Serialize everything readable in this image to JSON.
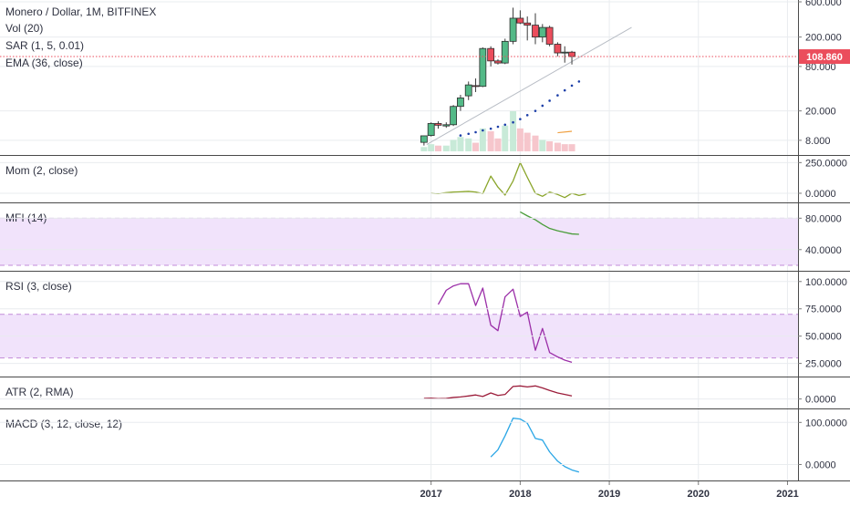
{
  "colors": {
    "up": "#53b987",
    "down": "#eb4d5c",
    "grid": "#e9ecef",
    "separator": "#4a4a4a",
    "band_fill": "#f1e3fb",
    "band_line": "#c28bd9",
    "price_line": "#eb4d5c",
    "sar": "#1c3fa8",
    "trend": "#b7bcc4",
    "vol_up": "#c8ead8",
    "vol_down": "#f6c6cc",
    "vol_ma": "#f0a040",
    "mom": "#8aa52a",
    "mfi": "#4a9d3a",
    "rsi": "#9b2fa8",
    "atr": "#9b1c3a",
    "macd": "#2aa6e6",
    "text": "#2f3241"
  },
  "labels": {
    "main_title": "Monero / Dollar, 1M, BITFINEX",
    "vol": "Vol (20)",
    "sar": "SAR (1, 5, 0.01)",
    "ema": "EMA (36, close)",
    "mom": "Mom (2, close)",
    "mfi": "MFI (14)",
    "rsi": "RSI (3, close)",
    "atr": "ATR (2, RMA)",
    "macd": "MACD (3, 12, close, 12)",
    "last_price": "108.860"
  },
  "chart_data": [
    {
      "type": "candlestick",
      "name": "Monero / Dollar, 1M, BITFINEX",
      "scale": "log",
      "ylim": [
        6,
        600
      ],
      "y_ticks": [
        "600.000",
        "200.000",
        "80.000",
        "20.000",
        "8.000"
      ],
      "x_ticks": [
        "2017",
        "2018",
        "2019",
        "2020",
        "2021"
      ],
      "last_price": 108.86,
      "candles": [
        {
          "t": 2016.92,
          "o": 7.5,
          "h": 9.0,
          "l": 6.8,
          "c": 9.2
        },
        {
          "t": 2017.0,
          "o": 9.3,
          "h": 14.0,
          "l": 9.0,
          "c": 13.5
        },
        {
          "t": 2017.08,
          "o": 13.5,
          "h": 14.5,
          "l": 11.5,
          "c": 12.8
        },
        {
          "t": 2017.17,
          "o": 12.5,
          "h": 14.0,
          "l": 11.8,
          "c": 13.0
        },
        {
          "t": 2017.25,
          "o": 13.0,
          "h": 24.0,
          "l": 12.5,
          "c": 23.0
        },
        {
          "t": 2017.33,
          "o": 23.0,
          "h": 33.0,
          "l": 20.0,
          "c": 30.0
        },
        {
          "t": 2017.42,
          "o": 32.0,
          "h": 50.0,
          "l": 28.0,
          "c": 45.0
        },
        {
          "t": 2017.5,
          "o": 44.0,
          "h": 55.0,
          "l": 36.0,
          "c": 43.0
        },
        {
          "t": 2017.58,
          "o": 43.0,
          "h": 145.0,
          "l": 42.0,
          "c": 140.0
        },
        {
          "t": 2017.67,
          "o": 140.0,
          "h": 150.0,
          "l": 80.0,
          "c": 95.0
        },
        {
          "t": 2017.75,
          "o": 95.0,
          "h": 100.0,
          "l": 85.0,
          "c": 89.0
        },
        {
          "t": 2017.83,
          "o": 89.0,
          "h": 190.0,
          "l": 86.0,
          "c": 175.0
        },
        {
          "t": 2017.92,
          "o": 175.0,
          "h": 500.0,
          "l": 160.0,
          "c": 360.0
        },
        {
          "t": 2018.0,
          "o": 360.0,
          "h": 460.0,
          "l": 300.0,
          "c": 310.0
        },
        {
          "t": 2018.08,
          "o": 310.0,
          "h": 380.0,
          "l": 180.0,
          "c": 290.0
        },
        {
          "t": 2018.17,
          "o": 290.0,
          "h": 420.0,
          "l": 160.0,
          "c": 200.0
        },
        {
          "t": 2018.25,
          "o": 200.0,
          "h": 300.0,
          "l": 170.0,
          "c": 270.0
        },
        {
          "t": 2018.33,
          "o": 270.0,
          "h": 285.0,
          "l": 150.0,
          "c": 160.0
        },
        {
          "t": 2018.42,
          "o": 160.0,
          "h": 170.0,
          "l": 110.0,
          "c": 122.0
        },
        {
          "t": 2018.5,
          "o": 122.0,
          "h": 150.0,
          "l": 90.0,
          "c": 125.0
        },
        {
          "t": 2018.58,
          "o": 125.0,
          "h": 130.0,
          "l": 85.0,
          "c": 108.86
        }
      ],
      "sar": [
        {
          "t": 2017.33,
          "v": 9.3
        },
        {
          "t": 2017.42,
          "v": 9.8
        },
        {
          "t": 2017.5,
          "v": 10.3
        },
        {
          "t": 2017.58,
          "v": 10.9
        },
        {
          "t": 2017.67,
          "v": 11.5
        },
        {
          "t": 2017.75,
          "v": 12.2
        },
        {
          "t": 2017.83,
          "v": 13.0
        },
        {
          "t": 2017.92,
          "v": 14.0
        },
        {
          "t": 2018.0,
          "v": 15.5
        },
        {
          "t": 2018.08,
          "v": 17.5
        },
        {
          "t": 2018.17,
          "v": 20.0
        },
        {
          "t": 2018.25,
          "v": 23.5
        },
        {
          "t": 2018.33,
          "v": 27.5
        },
        {
          "t": 2018.42,
          "v": 32.5
        },
        {
          "t": 2018.5,
          "v": 38.0
        },
        {
          "t": 2018.58,
          "v": 44.0
        },
        {
          "t": 2018.66,
          "v": 50.0
        }
      ],
      "trendline": [
        {
          "t": 2016.95,
          "v": 7.0
        },
        {
          "t": 2019.25,
          "v": 270.0
        }
      ],
      "volume": [
        {
          "t": 2016.92,
          "v": 3,
          "dir": "up"
        },
        {
          "t": 2017.0,
          "v": 5,
          "dir": "up"
        },
        {
          "t": 2017.08,
          "v": 4,
          "dir": "down"
        },
        {
          "t": 2017.17,
          "v": 4,
          "dir": "up"
        },
        {
          "t": 2017.25,
          "v": 8,
          "dir": "up"
        },
        {
          "t": 2017.33,
          "v": 10,
          "dir": "up"
        },
        {
          "t": 2017.42,
          "v": 9,
          "dir": "up"
        },
        {
          "t": 2017.5,
          "v": 6,
          "dir": "down"
        },
        {
          "t": 2017.58,
          "v": 16,
          "dir": "up"
        },
        {
          "t": 2017.67,
          "v": 14,
          "dir": "down"
        },
        {
          "t": 2017.75,
          "v": 9,
          "dir": "down"
        },
        {
          "t": 2017.83,
          "v": 18,
          "dir": "up"
        },
        {
          "t": 2017.92,
          "v": 28,
          "dir": "up"
        },
        {
          "t": 2018.0,
          "v": 16,
          "dir": "down"
        },
        {
          "t": 2018.08,
          "v": 13,
          "dir": "down"
        },
        {
          "t": 2018.17,
          "v": 11,
          "dir": "down"
        },
        {
          "t": 2018.25,
          "v": 8,
          "dir": "up"
        },
        {
          "t": 2018.33,
          "v": 7,
          "dir": "down"
        },
        {
          "t": 2018.42,
          "v": 6,
          "dir": "down"
        },
        {
          "t": 2018.5,
          "v": 5,
          "dir": "down"
        },
        {
          "t": 2018.58,
          "v": 5,
          "dir": "down"
        }
      ],
      "volume_ma": [
        {
          "t": 2018.42,
          "v": 13
        },
        {
          "t": 2018.58,
          "v": 14
        }
      ]
    },
    {
      "type": "line",
      "name": "Mom (2, close)",
      "ylim": [
        -30,
        260
      ],
      "y_ticks": [
        "250.0000",
        "0.0000"
      ],
      "points": [
        {
          "t": 2017.0,
          "v": 1
        },
        {
          "t": 2017.08,
          "v": -3
        },
        {
          "t": 2017.17,
          "v": 5
        },
        {
          "t": 2017.25,
          "v": 10
        },
        {
          "t": 2017.33,
          "v": 12
        },
        {
          "t": 2017.42,
          "v": 15
        },
        {
          "t": 2017.5,
          "v": 10
        },
        {
          "t": 2017.58,
          "v": -3
        },
        {
          "t": 2017.67,
          "v": 140
        },
        {
          "t": 2017.75,
          "v": 50
        },
        {
          "t": 2017.83,
          "v": -15
        },
        {
          "t": 2017.92,
          "v": 100
        },
        {
          "t": 2018.0,
          "v": 250
        },
        {
          "t": 2018.08,
          "v": 130
        },
        {
          "t": 2018.17,
          "v": 0
        },
        {
          "t": 2018.25,
          "v": -25
        },
        {
          "t": 2018.33,
          "v": 10
        },
        {
          "t": 2018.42,
          "v": -10
        },
        {
          "t": 2018.5,
          "v": -35
        },
        {
          "t": 2018.58,
          "v": 0
        },
        {
          "t": 2018.66,
          "v": -18
        },
        {
          "t": 2018.74,
          "v": -5
        }
      ]
    },
    {
      "type": "line",
      "name": "MFI (14)",
      "ylim": [
        20,
        92
      ],
      "y_ticks": [
        "80.0000",
        "40.0000"
      ],
      "band": [
        20,
        80
      ],
      "points": [
        {
          "t": 2018.0,
          "v": 88
        },
        {
          "t": 2018.08,
          "v": 83
        },
        {
          "t": 2018.17,
          "v": 78
        },
        {
          "t": 2018.25,
          "v": 72
        },
        {
          "t": 2018.33,
          "v": 67
        },
        {
          "t": 2018.42,
          "v": 64
        },
        {
          "t": 2018.5,
          "v": 62
        },
        {
          "t": 2018.58,
          "v": 60
        },
        {
          "t": 2018.66,
          "v": 59.5
        }
      ]
    },
    {
      "type": "line",
      "name": "RSI (3, close)",
      "ylim": [
        18,
        104
      ],
      "y_ticks": [
        "100.0000",
        "75.0000",
        "50.0000",
        "25.0000"
      ],
      "band": [
        30,
        70
      ],
      "points": [
        {
          "t": 2017.08,
          "v": 79
        },
        {
          "t": 2017.17,
          "v": 92
        },
        {
          "t": 2017.25,
          "v": 96
        },
        {
          "t": 2017.33,
          "v": 98
        },
        {
          "t": 2017.42,
          "v": 98
        },
        {
          "t": 2017.5,
          "v": 78
        },
        {
          "t": 2017.58,
          "v": 94
        },
        {
          "t": 2017.67,
          "v": 60
        },
        {
          "t": 2017.75,
          "v": 55
        },
        {
          "t": 2017.83,
          "v": 86
        },
        {
          "t": 2017.92,
          "v": 93
        },
        {
          "t": 2018.0,
          "v": 68
        },
        {
          "t": 2018.08,
          "v": 72
        },
        {
          "t": 2018.17,
          "v": 37
        },
        {
          "t": 2018.25,
          "v": 57
        },
        {
          "t": 2018.33,
          "v": 35
        },
        {
          "t": 2018.42,
          "v": 31
        },
        {
          "t": 2018.5,
          "v": 28
        },
        {
          "t": 2018.58,
          "v": 26
        }
      ]
    },
    {
      "type": "line",
      "name": "ATR (2, RMA)",
      "ylim": [
        -8,
        32
      ],
      "y_ticks": [
        "0.0000"
      ],
      "points": [
        {
          "t": 2016.92,
          "v": 1
        },
        {
          "t": 2017.0,
          "v": 1.5
        },
        {
          "t": 2017.08,
          "v": 0.5
        },
        {
          "t": 2017.17,
          "v": 1
        },
        {
          "t": 2017.25,
          "v": 3
        },
        {
          "t": 2017.33,
          "v": 4
        },
        {
          "t": 2017.42,
          "v": 6
        },
        {
          "t": 2017.5,
          "v": 8
        },
        {
          "t": 2017.58,
          "v": 5
        },
        {
          "t": 2017.67,
          "v": 12
        },
        {
          "t": 2017.75,
          "v": 7
        },
        {
          "t": 2017.83,
          "v": 9
        },
        {
          "t": 2017.92,
          "v": 25
        },
        {
          "t": 2018.0,
          "v": 26
        },
        {
          "t": 2018.08,
          "v": 24
        },
        {
          "t": 2018.17,
          "v": 26
        },
        {
          "t": 2018.25,
          "v": 22
        },
        {
          "t": 2018.33,
          "v": 17
        },
        {
          "t": 2018.42,
          "v": 12
        },
        {
          "t": 2018.5,
          "v": 9
        },
        {
          "t": 2018.58,
          "v": 6
        }
      ]
    },
    {
      "type": "line",
      "name": "MACD (3, 12, close, 12)",
      "ylim": [
        -25,
        118
      ],
      "y_ticks": [
        "100.0000",
        "0.0000"
      ],
      "points": [
        {
          "t": 2017.67,
          "v": 18
        },
        {
          "t": 2017.75,
          "v": 35
        },
        {
          "t": 2017.83,
          "v": 68
        },
        {
          "t": 2017.92,
          "v": 110
        },
        {
          "t": 2018.0,
          "v": 108
        },
        {
          "t": 2018.08,
          "v": 98
        },
        {
          "t": 2018.17,
          "v": 62
        },
        {
          "t": 2018.25,
          "v": 58
        },
        {
          "t": 2018.33,
          "v": 30
        },
        {
          "t": 2018.42,
          "v": 8
        },
        {
          "t": 2018.5,
          "v": -5
        },
        {
          "t": 2018.58,
          "v": -13
        },
        {
          "t": 2018.66,
          "v": -18
        }
      ]
    }
  ]
}
